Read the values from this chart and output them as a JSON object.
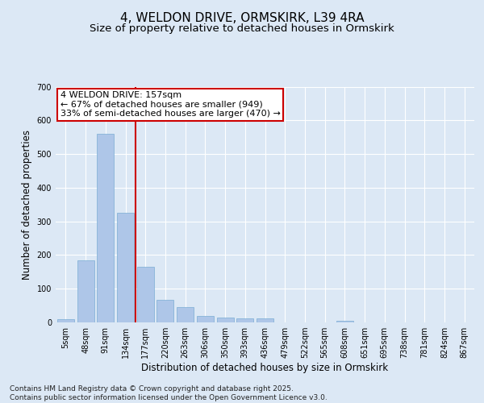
{
  "title": "4, WELDON DRIVE, ORMSKIRK, L39 4RA",
  "subtitle": "Size of property relative to detached houses in Ormskirk",
  "xlabel": "Distribution of detached houses by size in Ormskirk",
  "ylabel": "Number of detached properties",
  "categories": [
    "5sqm",
    "48sqm",
    "91sqm",
    "134sqm",
    "177sqm",
    "220sqm",
    "263sqm",
    "306sqm",
    "350sqm",
    "393sqm",
    "436sqm",
    "479sqm",
    "522sqm",
    "565sqm",
    "608sqm",
    "651sqm",
    "695sqm",
    "738sqm",
    "781sqm",
    "824sqm",
    "867sqm"
  ],
  "values": [
    10,
    185,
    560,
    325,
    165,
    68,
    45,
    20,
    15,
    12,
    13,
    0,
    0,
    0,
    5,
    0,
    0,
    0,
    0,
    0,
    0
  ],
  "bar_color": "#aec6e8",
  "bar_edge_color": "#7aadd4",
  "vline_x": 3.5,
  "vline_color": "#cc0000",
  "annotation_text": "4 WELDON DRIVE: 157sqm\n← 67% of detached houses are smaller (949)\n33% of semi-detached houses are larger (470) →",
  "annotation_box_color": "#ffffff",
  "annotation_box_edge": "#cc0000",
  "background_color": "#dce8f5",
  "plot_bg_color": "#dce8f5",
  "ylim": [
    0,
    700
  ],
  "yticks": [
    0,
    100,
    200,
    300,
    400,
    500,
    600,
    700
  ],
  "footer": "Contains HM Land Registry data © Crown copyright and database right 2025.\nContains public sector information licensed under the Open Government Licence v3.0.",
  "title_fontsize": 11,
  "subtitle_fontsize": 9.5,
  "axis_label_fontsize": 8.5,
  "tick_fontsize": 7,
  "footer_fontsize": 6.5,
  "annotation_fontsize": 8
}
